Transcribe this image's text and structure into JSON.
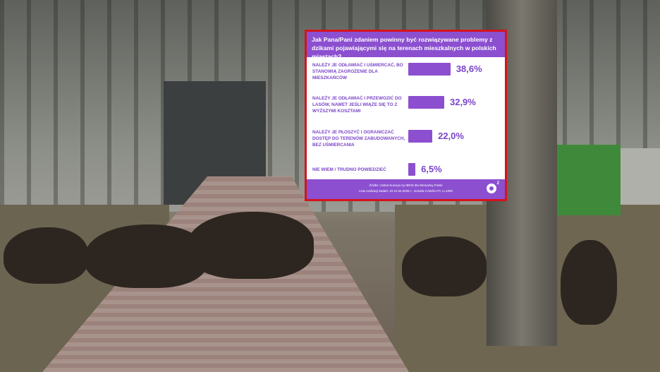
{
  "chart_data": {
    "type": "bar",
    "orientation": "horizontal",
    "title": "Jak Pana/Pani zdaniem powinny być rozwiązywane problemy z dzikami pojawiającymi się na terenach mieszkalnych w polskich miastach?",
    "categories": [
      "Należy je odławiać i uśmiercać, bo stanowią zagrożenie dla mieszkańców",
      "Należy je odławiać i przewozić do lasów, nawet jeśli wiąże się to z wyższymi kosztami",
      "Należy je płoszyć i ograniczać dostęp do terenów zabudowanych, bez uśmiercania",
      "Nie wiem / trudno powiedzieć"
    ],
    "values": [
      38.6,
      32.9,
      22.0,
      6.5
    ],
    "value_labels": [
      "38,6%",
      "32,9%",
      "22,0%",
      "6,5%"
    ],
    "unit": "%",
    "bar_color": "#8b4fd0",
    "border_color": "#d4141c",
    "source": "Źródło: United Surveys by IBRIS dla Wirtualnej Polski",
    "note": "czas realizacji badań: 10-12.04.2026 r., metoda CAWI/CATI, n=1000",
    "logo": "o2"
  }
}
